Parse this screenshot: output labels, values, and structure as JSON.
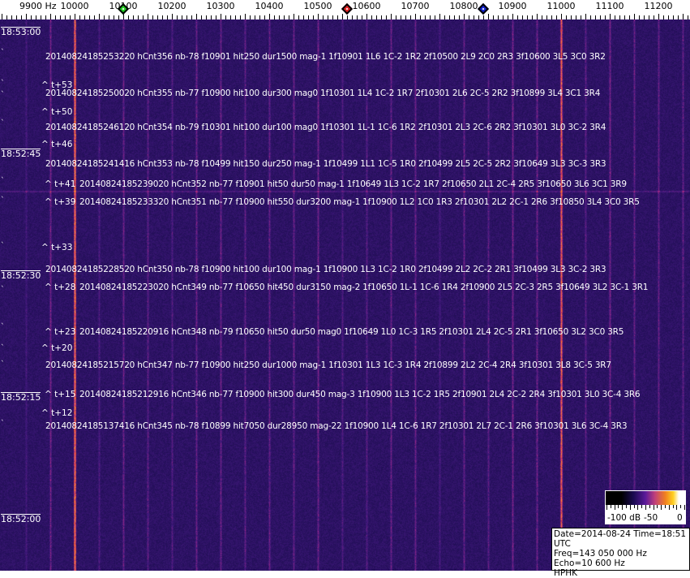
{
  "axis": {
    "unit_label": "9900 Hz",
    "labels": [
      "10000",
      "10100",
      "10200",
      "10300",
      "10400",
      "10500",
      "10600",
      "10700",
      "10800",
      "10900",
      "11000",
      "11100",
      "11200"
    ],
    "markers": [
      {
        "name": "green",
        "freq": 10100,
        "color": "#22cc22"
      },
      {
        "name": "red",
        "freq": 10560,
        "color": "#dd2222"
      },
      {
        "name": "blue",
        "freq": 10840,
        "color": "#1122cc"
      }
    ]
  },
  "time_labels": [
    "18:53:00",
    "18:52:45",
    "18:52:30",
    "18:52:15",
    "18:52:00"
  ],
  "events": [
    "20140824185253220 hCnt356 nb-78 f10901 hit250 dur1500 mag-1 1f10901 1L6 1C-2 1R2 2f10500 2L9 2C0 2R3 3f10600 3L5 3C0 3R2",
    "20140824185250020 hCnt355 nb-77 f10900 hit100 dur300 mag0 1f10301 1L4 1C-2 1R7 2f10301 2L6 2C-5 2R2 3f10899 3L4 3C1 3R4",
    "20140824185246120 hCnt354 nb-79 f10301 hit100 dur100 mag0 1f10301 1L-1 1C-6 1R2 2f10301 2L3 2C-6 2R2 3f10301 3L0 3C-2 3R4",
    "20140824185241416 hCnt353 nb-78 f10499 hit150 dur250 mag-1 1f10499 1L1 1C-5 1R0 2f10499 2L5 2C-5 2R2 3f10649 3L3 3C-3 3R3",
    "20140824185239020 hCnt352 nb-77 f10901 hit50 dur50 mag-1 1f10649 1L3 1C-2 1R7 2f10650 2L1 2C-4 2R5 3f10650 3L6 3C1 3R9",
    "20140824185233320 hCnt351 nb-77 f10900 hit550 dur3200 mag-1 1f10900 1L2 1C0 1R3 2f10301 2L2 2C-1 2R6 3f10850 3L4 3C0 3R5",
    "20140824185228520 hCnt350 nb-78 f10900 hit100 dur100 mag-1 1f10900 1L3 1C-2 1R0 2f10499 2L2 2C-2 2R1 3f10499 3L3 3C-2 3R3",
    "20140824185223020 hCnt349 nb-77 f10650 hit450 dur3150 mag-2 1f10650 1L-1 1C-6 1R4 2f10900 2L5 2C-3 2R5 3f10649 3L2 3C-1 3R1",
    "20140824185220916 hCnt348 nb-79 f10650 hit50 dur50 mag0 1f10649 1L0 1C-3 1R5 2f10301 2L4 2C-5 2R1 3f10650 3L2 3C0 3R5",
    "20140824185215720 hCnt347 nb-77 f10900 hit250 dur1000 mag-1 1f10301 1L3 1C-3 1R4 2f10899 2L2 2C-4 2R4 3f10301 3L8 3C-5 3R7",
    "20140824185212916 hCnt346 nb-77 f10900 hit300 dur450 mag-3 1f10900 1L3 1C-2 1R5 2f10901 2L4 2C-2 2R4 3f10301 3L0 3C-4 3R6",
    "20140824185137416 hCnt345 nb-78 f10899 hit7050 dur28950 mag-22 1f10900 1L4 1C-6 1R7 2f10301 2L7 2C-1 2R6 3f10301 3L6 3C-4 3R3"
  ],
  "relative_marks": [
    "^ t+53",
    "^ t+50",
    "^ t+46",
    "^ t+41",
    "^ t+39",
    "^ t+33",
    "^ t+28",
    "^ t+23",
    "^ t+20",
    "^ t+15",
    "^ t+12"
  ],
  "colorbar": {
    "labels": [
      "-100 dB",
      "-50",
      "0"
    ]
  },
  "info": {
    "date_line": "Date=2014-08-24 Time=18:51 UTC",
    "freq_line": "Freq=143 050 000 Hz",
    "echo_line": "Echo=10 600 Hz",
    "station": "HPHK"
  }
}
